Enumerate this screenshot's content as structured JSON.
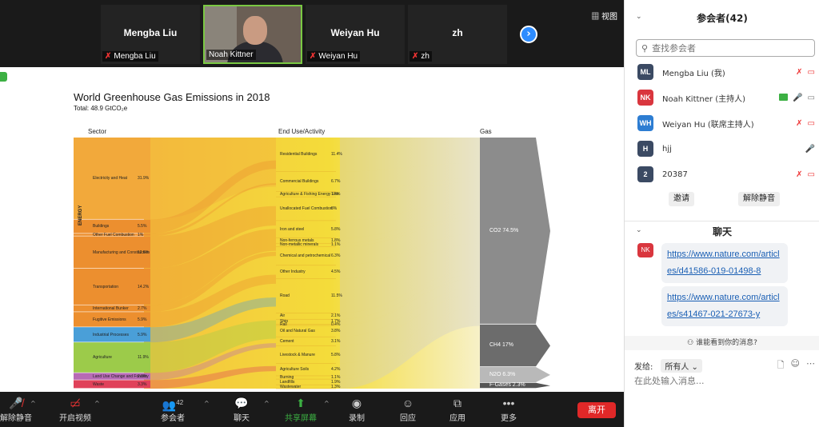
{
  "video_strip": {
    "tiles": [
      {
        "big_name": "Mengba Liu",
        "small_name": "Mengba Liu"
      },
      {
        "small_name": "Noah Kittner"
      },
      {
        "big_name": "Weiyan Hu",
        "small_name": "Weiyan Hu"
      },
      {
        "big_name": "zh",
        "small_name": "zh"
      }
    ],
    "view_label": "▦ 视图"
  },
  "slide": {
    "title": "World Greenhouse Gas Emissions in 2018",
    "subtitle": "Total: 48.9 GtCO₂e",
    "col_sector": "Sector",
    "col_end_use": "End Use/Activity",
    "col_gas": "Gas",
    "energy_label": "ENERGY",
    "sectors": [
      {
        "label": "Electricity and Heat",
        "value": "31.9%",
        "color": "#f2a93b"
      },
      {
        "label": "Buildings",
        "value": "5.5%",
        "color": "#ec8f2f"
      },
      {
        "label": "Other Fuel Combustion",
        "value": "1%",
        "color": "#ec8f2f"
      },
      {
        "label": "Manufacturing and Construction",
        "value": "12.6%",
        "color": "#ec8f2f"
      },
      {
        "label": "Transportation",
        "value": "14.2%",
        "color": "#ec8f2f"
      },
      {
        "label": "International Bunker",
        "value": "2.7%",
        "color": "#ec8f2f"
      },
      {
        "label": "Fugitive Emissions",
        "value": "5.9%",
        "color": "#ec8f2f"
      },
      {
        "label": "Industrial Processes",
        "value": "5.9%",
        "color": "#4a9fd8"
      },
      {
        "label": "Agriculture",
        "value": "11.9%",
        "color": "#9ccb4a"
      },
      {
        "label": "Land Use Change and Forestry",
        "value": "2.8%",
        "color": "#b76bb5"
      },
      {
        "label": "Waste",
        "value": "3.3%",
        "color": "#e0425a"
      }
    ],
    "end_uses": [
      {
        "label": "Residential Buildings",
        "value": "11.4%"
      },
      {
        "label": "Commercial Buildings",
        "value": "6.7%"
      },
      {
        "label": "Agriculture & Fishing Energy Use",
        "value": "1.8%"
      },
      {
        "label": "Unallocated Fuel Combustion",
        "value": "8%"
      },
      {
        "label": "Iron and steel",
        "value": "5.8%"
      },
      {
        "label": "Non-ferrous metals",
        "value": "1.8%"
      },
      {
        "label": "Non-metallic minerals",
        "value": "1.1%"
      },
      {
        "label": "Chemical and petrochemical",
        "value": "6.3%"
      },
      {
        "label": "Other Industry",
        "value": "4.5%"
      },
      {
        "label": "Road",
        "value": "11.5%"
      },
      {
        "label": "Air",
        "value": "2.1%"
      },
      {
        "label": "Ship",
        "value": "1.7%"
      },
      {
        "label": "Rail",
        "value": "0.4%"
      },
      {
        "label": "Oil and Natural Gas",
        "value": "3.8%"
      },
      {
        "label": "Cement",
        "value": "3.1%"
      },
      {
        "label": "Livestock & Manure",
        "value": "5.8%"
      },
      {
        "label": "Agriculture Soils",
        "value": "4.2%"
      },
      {
        "label": "Burning",
        "value": "1.1%"
      },
      {
        "label": "Landfills",
        "value": "1.9%"
      },
      {
        "label": "Wastewater",
        "value": "1.3%"
      }
    ],
    "gases": [
      {
        "label": "CO2",
        "value": "74.5%",
        "color": "#8c8c8c"
      },
      {
        "label": "CH4",
        "value": "17%",
        "color": "#6c6c6c"
      },
      {
        "label": "N2O",
        "value": "6.3%",
        "color": "#b9b9b9"
      },
      {
        "label": "F-Gases",
        "value": "2.3%",
        "color": "#555555"
      }
    ]
  },
  "toolbar": {
    "unmute": "解除静音",
    "start_video": "开启视频",
    "participants": "参会者",
    "participants_count": "42",
    "chat": "聊天",
    "share": "共享屏幕",
    "record": "录制",
    "reactions": "回应",
    "apps": "应用",
    "more": "更多",
    "leave": "离开"
  },
  "panel": {
    "title": "参会者(42)",
    "search_placeholder": "查找参会者",
    "participants": [
      {
        "initials": "ML",
        "name": "Mengba Liu (我)",
        "color": "#3b4a63"
      },
      {
        "initials": "NK",
        "name": "Noah Kittner (主持人)",
        "color": "#d9363e"
      },
      {
        "initials": "WH",
        "name": "Weiyan Hu (联席主持人)",
        "color": "#2d7dd2"
      },
      {
        "initials": "H",
        "name": "hjj",
        "color": "#3b4a63"
      },
      {
        "initials": "2",
        "name": "20387",
        "color": "#3b4a63"
      }
    ],
    "invite": "邀请",
    "unmute_btn": "解除静音",
    "chat_title": "聊天",
    "sender_initials": "NK",
    "messages": [
      "https://www.nature.com/articles/d41586-019-01498-8",
      "https://www.nature.com/articles/s41467-021-27673-y"
    ],
    "who_can_see": "谁能看到你的消息?",
    "send_to_label": "发给:",
    "send_to_value": "所有人 ⌄",
    "input_placeholder": "在此处输入消息..."
  }
}
